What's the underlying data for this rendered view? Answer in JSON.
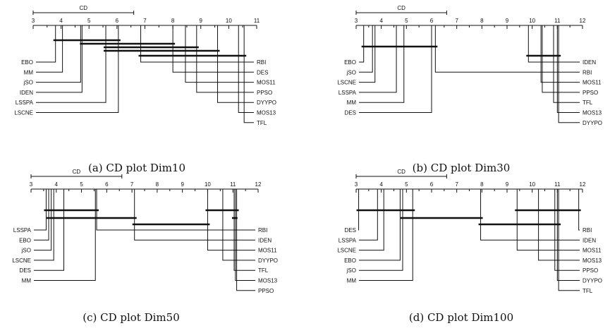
{
  "chart_data": [
    {
      "type": "cd-diagram",
      "caption": "(a) CD plot Dim10",
      "cd_label": "CD",
      "cd_value": 3.6,
      "axis_range": [
        3,
        11
      ],
      "ticks": [
        3,
        4,
        5,
        6,
        7,
        8,
        9,
        10,
        11
      ],
      "left": [
        {
          "name": "EBO",
          "rank": 3.8
        },
        {
          "name": "MM",
          "rank": 4.05
        },
        {
          "name": "jSO",
          "rank": 4.7
        },
        {
          "name": "IDEN",
          "rank": 4.75
        },
        {
          "name": "LSSPA",
          "rank": 5.6
        },
        {
          "name": "LSCNE",
          "rank": 6.05
        }
      ],
      "right": [
        {
          "name": "RBI",
          "rank": 6.85
        },
        {
          "name": "DES",
          "rank": 8.0
        },
        {
          "name": "MOS11",
          "rank": 8.45
        },
        {
          "name": "PPSO",
          "rank": 8.85
        },
        {
          "name": "DYYPO",
          "rank": 9.6
        },
        {
          "name": "MOS13",
          "rank": 10.35
        },
        {
          "name": "TFL",
          "rank": 10.55
        }
      ],
      "cliques": [
        [
          3.8,
          6.05
        ],
        [
          4.75,
          8.0
        ],
        [
          5.6,
          8.85
        ],
        [
          5.6,
          9.6
        ],
        [
          6.85,
          10.55
        ]
      ]
    },
    {
      "type": "cd-diagram",
      "caption": "(b) CD plot Dim30",
      "cd_label": "CD",
      "cd_value": 3.6,
      "axis_range": [
        3,
        12
      ],
      "ticks": [
        3,
        4,
        5,
        6,
        7,
        8,
        9,
        10,
        11,
        12
      ],
      "left": [
        {
          "name": "EBO",
          "rank": 3.3
        },
        {
          "name": "jSO",
          "rank": 3.65
        },
        {
          "name": "LSCNE",
          "rank": 3.75
        },
        {
          "name": "LSSPA",
          "rank": 4.6
        },
        {
          "name": "MM",
          "rank": 4.9
        },
        {
          "name": "DES",
          "rank": 6.0
        }
      ],
      "right": [
        {
          "name": "IDEN",
          "rank": 9.85
        },
        {
          "name": "RBI",
          "rank": 6.15
        },
        {
          "name": "MOS11",
          "rank": 10.35
        },
        {
          "name": "PPSO",
          "rank": 10.4
        },
        {
          "name": "TFL",
          "rank": 10.85
        },
        {
          "name": "MOS13",
          "rank": 11.0
        },
        {
          "name": "DYYPO",
          "rank": 11.05
        }
      ],
      "cliques": [
        [
          3.3,
          6.15
        ],
        [
          9.85,
          11.05
        ]
      ]
    },
    {
      "type": "cd-diagram",
      "caption": "(c) CD plot Dim50",
      "cd_label": "CD",
      "cd_value": 3.6,
      "axis_range": [
        3,
        12
      ],
      "ticks": [
        3,
        4,
        5,
        6,
        7,
        8,
        9,
        10,
        11,
        12
      ],
      "left": [
        {
          "name": "LSSPA",
          "rank": 3.6
        },
        {
          "name": "EBO",
          "rank": 3.7
        },
        {
          "name": "jSO",
          "rank": 3.8
        },
        {
          "name": "LSCNE",
          "rank": 3.9
        },
        {
          "name": "DES",
          "rank": 4.3
        },
        {
          "name": "MM",
          "rank": 5.55
        }
      ],
      "right": [
        {
          "name": "RBI",
          "rank": 5.6
        },
        {
          "name": "IDEN",
          "rank": 7.1
        },
        {
          "name": "MOS11",
          "rank": 10.0
        },
        {
          "name": "DYYPO",
          "rank": 10.6
        },
        {
          "name": "TFL",
          "rank": 11.05
        },
        {
          "name": "MOS13",
          "rank": 11.1
        },
        {
          "name": "PPSO",
          "rank": 11.15
        }
      ],
      "cliques": [
        [
          3.6,
          5.6
        ],
        [
          3.7,
          7.1
        ],
        [
          7.1,
          10.0
        ],
        [
          10.0,
          11.15
        ],
        [
          11.05,
          11.1
        ]
      ]
    },
    {
      "type": "cd-diagram",
      "caption": "(d) CD plot Dim100",
      "cd_label": "CD",
      "cd_value": 3.6,
      "axis_range": [
        3,
        12
      ],
      "ticks": [
        3,
        4,
        5,
        6,
        7,
        8,
        9,
        10,
        11,
        12
      ],
      "left": [
        {
          "name": "DES",
          "rank": 3.1
        },
        {
          "name": "LSSPA",
          "rank": 3.85
        },
        {
          "name": "LSCNE",
          "rank": 4.1
        },
        {
          "name": "EBO",
          "rank": 4.75
        },
        {
          "name": "jSO",
          "rank": 4.85
        },
        {
          "name": "MM",
          "rank": 5.25
        }
      ],
      "right": [
        {
          "name": "RBI",
          "rank": 11.85
        },
        {
          "name": "IDEN",
          "rank": 7.95
        },
        {
          "name": "MOS11",
          "rank": 9.4
        },
        {
          "name": "MOS13",
          "rank": 10.25
        },
        {
          "name": "PPSO",
          "rank": 10.9
        },
        {
          "name": "DYYPO",
          "rank": 11.0
        },
        {
          "name": "TFL",
          "rank": 11.05
        }
      ],
      "cliques": [
        [
          3.1,
          5.25
        ],
        [
          4.85,
          7.95
        ],
        [
          7.95,
          11.05
        ],
        [
          9.4,
          11.85
        ]
      ]
    }
  ]
}
